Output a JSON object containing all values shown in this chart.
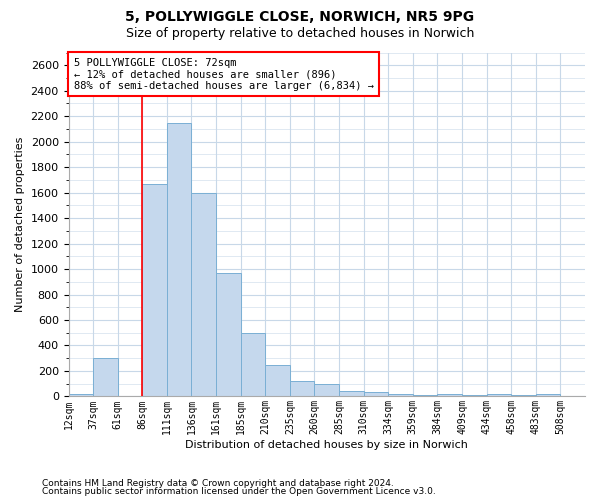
{
  "title1": "5, POLLYWIGGLE CLOSE, NORWICH, NR5 9PG",
  "title2": "Size of property relative to detached houses in Norwich",
  "xlabel": "Distribution of detached houses by size in Norwich",
  "ylabel": "Number of detached properties",
  "footnote1": "Contains HM Land Registry data © Crown copyright and database right 2024.",
  "footnote2": "Contains public sector information licensed under the Open Government Licence v3.0.",
  "annotation_line1": "5 POLLYWIGGLE CLOSE: 72sqm",
  "annotation_line2": "← 12% of detached houses are smaller (896)",
  "annotation_line3": "88% of semi-detached houses are larger (6,834) →",
  "bar_color": "#c5d8ed",
  "bar_edge_color": "#7aafd4",
  "red_line_index": 3,
  "categories": [
    "12sqm",
    "37sqm",
    "61sqm",
    "86sqm",
    "111sqm",
    "136sqm",
    "161sqm",
    "185sqm",
    "210sqm",
    "235sqm",
    "260sqm",
    "285sqm",
    "310sqm",
    "334sqm",
    "359sqm",
    "384sqm",
    "409sqm",
    "434sqm",
    "458sqm",
    "483sqm",
    "508sqm"
  ],
  "values": [
    20,
    300,
    5,
    1670,
    2150,
    1600,
    970,
    500,
    245,
    120,
    100,
    45,
    35,
    18,
    15,
    18,
    15,
    18,
    10,
    20,
    5
  ],
  "ylim": [
    0,
    2700
  ],
  "yticks": [
    0,
    200,
    400,
    600,
    800,
    1000,
    1200,
    1400,
    1600,
    1800,
    2000,
    2200,
    2400,
    2600
  ],
  "grid_color": "#c8d8e8",
  "title1_fontsize": 10,
  "title2_fontsize": 9,
  "ylabel_fontsize": 8,
  "xlabel_fontsize": 8
}
